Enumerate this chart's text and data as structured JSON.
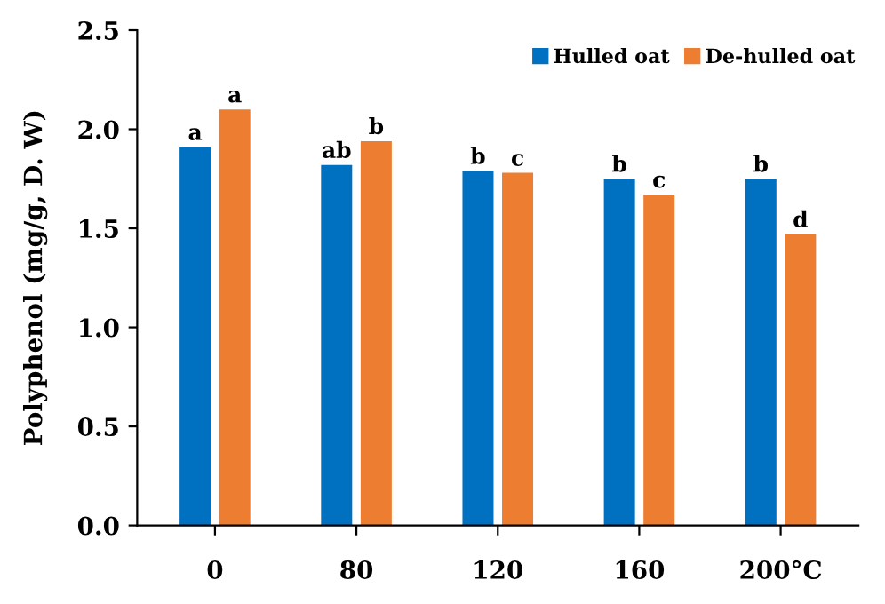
{
  "chart_data": {
    "type": "bar",
    "ylabel": "Polyphenol (mg/g, D. W)",
    "categories": [
      "0",
      "80",
      "120",
      "160",
      "200°C"
    ],
    "series": [
      {
        "name": "Hulled oat",
        "color": "#0070c0",
        "values": [
          1.91,
          1.82,
          1.79,
          1.75,
          1.75
        ],
        "value_labels": [
          "a",
          "ab",
          "b",
          "b",
          "b"
        ]
      },
      {
        "name": "De-hulled oat",
        "color": "#ed7d31",
        "values": [
          2.1,
          1.94,
          1.78,
          1.67,
          1.47
        ],
        "value_labels": [
          "a",
          "b",
          "c",
          "c",
          "d"
        ]
      }
    ],
    "ylim": [
      0,
      2.5
    ],
    "yticks": [
      {
        "value": 0,
        "label": "0.0"
      },
      0.5,
      {
        "value": 1,
        "label": "1.0"
      },
      1.5,
      {
        "value": 2,
        "label": "2.0"
      },
      2.5
    ],
    "grid": false,
    "legend": "top right"
  }
}
